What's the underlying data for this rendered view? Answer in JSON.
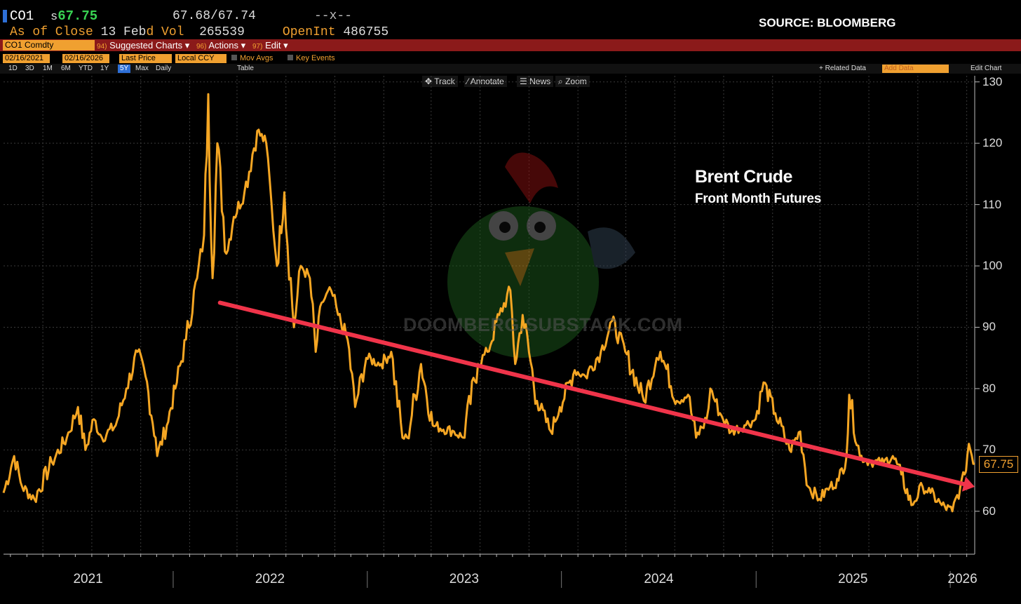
{
  "header": {
    "ticker": "CO1",
    "price_prefix": "s",
    "price": "67.75",
    "bid_ask": "67.68/67.74",
    "placeholder_x": "--x--",
    "as_of_label": "As of Close",
    "as_of_value": "13 Feb",
    "vol_label": "d Vol",
    "vol_value": "265539",
    "openint_label": "OpenInt",
    "openint_value": "486755",
    "source": "SOURCE: BLOOMBERG"
  },
  "menu": {
    "security": "CO1 Comdty",
    "suggested_num": "94)",
    "suggested_label": "Suggested Charts",
    "actions_num": "96)",
    "actions_label": "Actions",
    "edit_num": "97)",
    "edit_label": "Edit"
  },
  "settings": {
    "start_date": "02/16/2021",
    "end_date": "02/16/2026",
    "field": "Last Price",
    "currency": "Local CCY",
    "mov_avgs": "Mov Avgs",
    "key_events": "Key Events"
  },
  "ranges": {
    "items": [
      "1D",
      "3D",
      "1M",
      "6M",
      "YTD",
      "1Y",
      "5Y",
      "Max",
      "Daily"
    ],
    "selected": "5Y",
    "table": "Table",
    "related_data": "+ Related Data",
    "add_data": "Add Data",
    "edit_chart": "Edit Chart"
  },
  "tools": {
    "track": "Track",
    "annotate": "Annotate",
    "news": "News",
    "zoom": "Zoom"
  },
  "watermark": "DOOMBERG.SUBSTACK.COM",
  "colors": {
    "line": "#f5a623",
    "trend": "#f0344a",
    "background": "#000000",
    "grid": "#3a3a3a"
  },
  "chart_data": {
    "type": "line",
    "title": "Brent Crude",
    "subtitle": "Front Month Futures",
    "xlabel": "",
    "ylabel": "",
    "last_value_label": "67.75",
    "ylim": [
      53,
      131
    ],
    "yticks": [
      60,
      70,
      80,
      90,
      100,
      110,
      120,
      130
    ],
    "xticks": [
      "2021",
      "2022",
      "2023",
      "2024",
      "2025",
      "2026"
    ],
    "xrange": [
      "2021-02-16",
      "2026-02-16"
    ],
    "grid": true,
    "series": [
      {
        "x": [
          "2021-02-16",
          "2021-03-08",
          "2021-03-23",
          "2021-04-15",
          "2021-05-18",
          "2021-06-15",
          "2021-07-06",
          "2021-07-20",
          "2021-08-05",
          "2021-08-20",
          "2021-09-15",
          "2021-10-05",
          "2021-10-26",
          "2021-11-10",
          "2021-11-29",
          "2021-12-02",
          "2021-12-20",
          "2022-01-05",
          "2022-01-25",
          "2022-02-15",
          "2022-02-28",
          "2022-03-08",
          "2022-03-16",
          "2022-03-25",
          "2022-04-11",
          "2022-04-25",
          "2022-05-15",
          "2022-06-08",
          "2022-06-25",
          "2022-07-05",
          "2022-07-15",
          "2022-07-29",
          "2022-08-16",
          "2022-08-29",
          "2022-09-15",
          "2022-09-26",
          "2022-10-07",
          "2022-10-25",
          "2022-11-07",
          "2022-11-25",
          "2022-12-09",
          "2022-12-30",
          "2023-01-27",
          "2023-02-15",
          "2023-03-08",
          "2023-03-17",
          "2023-04-12",
          "2023-05-04",
          "2023-06-13",
          "2023-06-30",
          "2023-07-28",
          "2023-08-15",
          "2023-09-06",
          "2023-09-27",
          "2023-10-06",
          "2023-10-20",
          "2023-11-16",
          "2023-12-12",
          "2023-12-29",
          "2024-01-26",
          "2024-02-15",
          "2024-03-15",
          "2024-04-05",
          "2024-04-30",
          "2024-06-04",
          "2024-06-28",
          "2024-07-05",
          "2024-08-05",
          "2024-08-26",
          "2024-09-10",
          "2024-09-30",
          "2024-10-07",
          "2024-10-25",
          "2024-11-15",
          "2024-12-10",
          "2024-12-31",
          "2025-01-15",
          "2025-02-06",
          "2025-03-05",
          "2025-03-25",
          "2025-04-09",
          "2025-04-30",
          "2025-05-20",
          "2025-06-05",
          "2025-06-20",
          "2025-06-25",
          "2025-07-15",
          "2025-08-05",
          "2025-08-29",
          "2025-09-15",
          "2025-10-01",
          "2025-10-20",
          "2025-11-10",
          "2025-11-25",
          "2025-12-16",
          "2026-01-05",
          "2026-01-20",
          "2026-01-28",
          "2026-02-05",
          "2026-02-16"
        ],
        "y": [
          63,
          69,
          64,
          62,
          68,
          72,
          77,
          70,
          75,
          72,
          74,
          80,
          86,
          82,
          72,
          69,
          74,
          80,
          88,
          98,
          105,
          128,
          98,
          120,
          102,
          108,
          112,
          122,
          120,
          110,
          100,
          112,
          90,
          100,
          98,
          86,
          94,
          96,
          92,
          88,
          77,
          85,
          84,
          86,
          72,
          72,
          84,
          74,
          73,
          72,
          84,
          86,
          92,
          96,
          84,
          92,
          78,
          73,
          77,
          83,
          82,
          86,
          91,
          86,
          78,
          85,
          86,
          78,
          79,
          72,
          75,
          80,
          76,
          73,
          74,
          75,
          81,
          76,
          70,
          73,
          64,
          62,
          64,
          65,
          69,
          79,
          69,
          68,
          68,
          69,
          66,
          61,
          64,
          63,
          61,
          60,
          64,
          66,
          71,
          67.75
        ]
      }
    ],
    "trend_line": {
      "x": [
        "2022-03-30",
        "2026-02-16"
      ],
      "y": [
        94,
        64
      ]
    }
  }
}
